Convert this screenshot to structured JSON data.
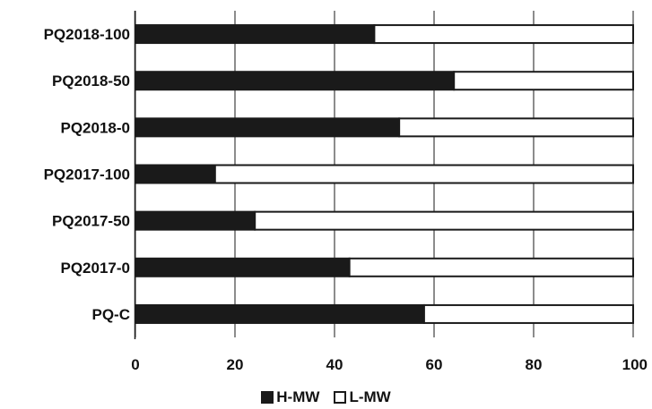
{
  "chart_data": {
    "type": "bar",
    "orientation": "horizontal",
    "stacked": true,
    "categories": [
      "PQ2018-100",
      "PQ2018-50",
      "PQ2018-0",
      "PQ2017-100",
      "PQ2017-50",
      "PQ2017-0",
      "PQ-C"
    ],
    "series": [
      {
        "name": "H-MW",
        "color": "#1a1a1a",
        "values": [
          48,
          64,
          53,
          16,
          24,
          43,
          58
        ]
      },
      {
        "name": "L-MW",
        "color": "#ffffff",
        "values": [
          52,
          36,
          47,
          84,
          76,
          57,
          42
        ]
      }
    ],
    "xlim": [
      0,
      100
    ],
    "xticks": [
      "0",
      "20",
      "40",
      "60",
      "80",
      "100"
    ],
    "grid": "vertical",
    "legend_position": "bottom-center",
    "title": "",
    "xlabel": "",
    "ylabel": ""
  }
}
